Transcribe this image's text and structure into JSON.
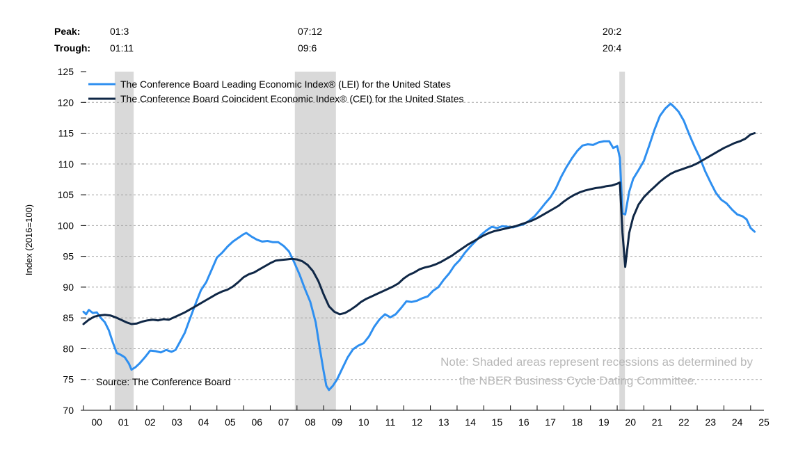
{
  "chart_data": {
    "type": "line",
    "ylabel": "Index (2016=100)",
    "ylim": [
      70,
      125
    ],
    "yticks": [
      "70",
      "75",
      "80",
      "85",
      "90",
      "95",
      "100",
      "105",
      "110",
      "115",
      "120",
      "125"
    ],
    "xlim": [
      2000,
      2025.5
    ],
    "xticks": [
      "00",
      "01",
      "02",
      "03",
      "04",
      "05",
      "06",
      "07",
      "08",
      "09",
      "10",
      "11",
      "12",
      "13",
      "14",
      "15",
      "16",
      "17",
      "18",
      "19",
      "20",
      "21",
      "22",
      "23",
      "24",
      "25"
    ],
    "grid": true,
    "legend": "top-left",
    "recessions": [
      {
        "peak": "01:3",
        "trough": "01:11",
        "start": 2001.17,
        "end": 2001.88
      },
      {
        "peak": "07:12",
        "trough": "09:6",
        "start": 2007.92,
        "end": 2009.46
      },
      {
        "peak": "20:2",
        "trough": "20:4",
        "start": 2020.08,
        "end": 2020.29
      }
    ],
    "peak_label": "Peak:",
    "trough_label": "Trough:",
    "source": "Source: The Conference Board",
    "note_line1": "Note: Shaded areas represent recessions as determined by",
    "note_line2": "the NBER Business Cycle Dating Committee.",
    "series": [
      {
        "name": "The Conference Board Leading Economic Index® (LEI) for the United States",
        "color": "#2e8ff0",
        "points": [
          [
            2000.0,
            86.0
          ],
          [
            2000.1,
            85.6
          ],
          [
            2000.2,
            86.3
          ],
          [
            2000.35,
            85.8
          ],
          [
            2000.5,
            85.9
          ],
          [
            2000.65,
            85.0
          ],
          [
            2000.8,
            84.3
          ],
          [
            2000.95,
            83.0
          ],
          [
            2001.1,
            81.0
          ],
          [
            2001.25,
            79.3
          ],
          [
            2001.4,
            79.0
          ],
          [
            2001.55,
            78.6
          ],
          [
            2001.7,
            77.6
          ],
          [
            2001.8,
            76.6
          ],
          [
            2001.95,
            77.0
          ],
          [
            2002.1,
            77.6
          ],
          [
            2002.3,
            78.6
          ],
          [
            2002.5,
            79.7
          ],
          [
            2002.7,
            79.6
          ],
          [
            2002.9,
            79.4
          ],
          [
            2003.1,
            79.8
          ],
          [
            2003.3,
            79.5
          ],
          [
            2003.45,
            79.8
          ],
          [
            2003.6,
            81.0
          ],
          [
            2003.8,
            82.6
          ],
          [
            2004.0,
            85.0
          ],
          [
            2004.2,
            87.3
          ],
          [
            2004.4,
            89.5
          ],
          [
            2004.6,
            90.8
          ],
          [
            2004.8,
            92.8
          ],
          [
            2005.0,
            94.8
          ],
          [
            2005.2,
            95.6
          ],
          [
            2005.4,
            96.6
          ],
          [
            2005.6,
            97.4
          ],
          [
            2005.8,
            98.0
          ],
          [
            2006.0,
            98.6
          ],
          [
            2006.1,
            98.8
          ],
          [
            2006.3,
            98.2
          ],
          [
            2006.5,
            97.7
          ],
          [
            2006.7,
            97.4
          ],
          [
            2006.9,
            97.5
          ],
          [
            2007.1,
            97.3
          ],
          [
            2007.3,
            97.3
          ],
          [
            2007.5,
            96.7
          ],
          [
            2007.7,
            95.8
          ],
          [
            2007.9,
            94.0
          ],
          [
            2008.1,
            92.0
          ],
          [
            2008.3,
            89.7
          ],
          [
            2008.5,
            87.6
          ],
          [
            2008.7,
            84.3
          ],
          [
            2008.85,
            80.2
          ],
          [
            2009.0,
            76.3
          ],
          [
            2009.1,
            74.0
          ],
          [
            2009.2,
            73.3
          ],
          [
            2009.35,
            74.0
          ],
          [
            2009.5,
            75.0
          ],
          [
            2009.7,
            76.8
          ],
          [
            2009.9,
            78.6
          ],
          [
            2010.1,
            79.9
          ],
          [
            2010.3,
            80.5
          ],
          [
            2010.5,
            80.9
          ],
          [
            2010.7,
            82.0
          ],
          [
            2010.9,
            83.6
          ],
          [
            2011.1,
            84.8
          ],
          [
            2011.3,
            85.6
          ],
          [
            2011.5,
            85.1
          ],
          [
            2011.7,
            85.6
          ],
          [
            2011.9,
            86.6
          ],
          [
            2012.1,
            87.7
          ],
          [
            2012.3,
            87.6
          ],
          [
            2012.5,
            87.8
          ],
          [
            2012.7,
            88.2
          ],
          [
            2012.9,
            88.5
          ],
          [
            2013.1,
            89.4
          ],
          [
            2013.3,
            90.0
          ],
          [
            2013.5,
            91.2
          ],
          [
            2013.7,
            92.2
          ],
          [
            2013.9,
            93.5
          ],
          [
            2014.1,
            94.4
          ],
          [
            2014.3,
            95.6
          ],
          [
            2014.5,
            96.6
          ],
          [
            2014.7,
            97.5
          ],
          [
            2014.9,
            98.5
          ],
          [
            2015.1,
            99.2
          ],
          [
            2015.3,
            99.8
          ],
          [
            2015.5,
            99.6
          ],
          [
            2015.7,
            99.9
          ],
          [
            2015.9,
            99.8
          ],
          [
            2016.1,
            99.7
          ],
          [
            2016.3,
            100.0
          ],
          [
            2016.5,
            100.2
          ],
          [
            2016.7,
            100.8
          ],
          [
            2016.9,
            101.5
          ],
          [
            2017.1,
            102.5
          ],
          [
            2017.3,
            103.6
          ],
          [
            2017.5,
            104.6
          ],
          [
            2017.7,
            106.0
          ],
          [
            2017.9,
            107.9
          ],
          [
            2018.1,
            109.5
          ],
          [
            2018.3,
            110.9
          ],
          [
            2018.5,
            112.1
          ],
          [
            2018.7,
            113.0
          ],
          [
            2018.9,
            113.2
          ],
          [
            2019.1,
            113.1
          ],
          [
            2019.3,
            113.5
          ],
          [
            2019.5,
            113.7
          ],
          [
            2019.7,
            113.7
          ],
          [
            2019.85,
            112.6
          ],
          [
            2020.0,
            112.9
          ],
          [
            2020.1,
            111.0
          ],
          [
            2020.2,
            102.0
          ],
          [
            2020.3,
            101.8
          ],
          [
            2020.45,
            105.5
          ],
          [
            2020.6,
            107.6
          ],
          [
            2020.8,
            109.0
          ],
          [
            2021.0,
            110.5
          ],
          [
            2021.2,
            113.0
          ],
          [
            2021.4,
            115.6
          ],
          [
            2021.6,
            117.8
          ],
          [
            2021.8,
            119.0
          ],
          [
            2022.0,
            119.8
          ],
          [
            2022.15,
            119.2
          ],
          [
            2022.3,
            118.5
          ],
          [
            2022.5,
            117.0
          ],
          [
            2022.7,
            114.8
          ],
          [
            2022.9,
            112.8
          ],
          [
            2023.1,
            111.0
          ],
          [
            2023.3,
            108.8
          ],
          [
            2023.5,
            107.0
          ],
          [
            2023.7,
            105.3
          ],
          [
            2023.9,
            104.2
          ],
          [
            2024.1,
            103.6
          ],
          [
            2024.3,
            102.6
          ],
          [
            2024.5,
            101.8
          ],
          [
            2024.7,
            101.5
          ],
          [
            2024.85,
            101.0
          ],
          [
            2025.0,
            99.6
          ],
          [
            2025.15,
            99.0
          ]
        ]
      },
      {
        "name": "The Conference Board Coincident Economic Index® (CEI) for the United States",
        "color": "#0f2746",
        "points": [
          [
            2000.0,
            84.0
          ],
          [
            2000.2,
            84.7
          ],
          [
            2000.4,
            85.2
          ],
          [
            2000.6,
            85.4
          ],
          [
            2000.8,
            85.5
          ],
          [
            2001.0,
            85.4
          ],
          [
            2001.2,
            85.1
          ],
          [
            2001.4,
            84.7
          ],
          [
            2001.6,
            84.3
          ],
          [
            2001.8,
            84.0
          ],
          [
            2002.0,
            84.1
          ],
          [
            2002.2,
            84.4
          ],
          [
            2002.4,
            84.6
          ],
          [
            2002.6,
            84.7
          ],
          [
            2002.8,
            84.6
          ],
          [
            2003.0,
            84.8
          ],
          [
            2003.2,
            84.7
          ],
          [
            2003.4,
            85.1
          ],
          [
            2003.6,
            85.5
          ],
          [
            2003.8,
            85.9
          ],
          [
            2004.0,
            86.4
          ],
          [
            2004.2,
            86.9
          ],
          [
            2004.4,
            87.4
          ],
          [
            2004.6,
            87.9
          ],
          [
            2004.8,
            88.4
          ],
          [
            2005.0,
            88.9
          ],
          [
            2005.2,
            89.3
          ],
          [
            2005.4,
            89.6
          ],
          [
            2005.6,
            90.1
          ],
          [
            2005.8,
            90.8
          ],
          [
            2006.0,
            91.6
          ],
          [
            2006.2,
            92.1
          ],
          [
            2006.4,
            92.4
          ],
          [
            2006.6,
            92.9
          ],
          [
            2006.8,
            93.4
          ],
          [
            2007.0,
            93.9
          ],
          [
            2007.2,
            94.3
          ],
          [
            2007.4,
            94.4
          ],
          [
            2007.6,
            94.5
          ],
          [
            2007.8,
            94.6
          ],
          [
            2008.0,
            94.5
          ],
          [
            2008.2,
            94.2
          ],
          [
            2008.4,
            93.6
          ],
          [
            2008.6,
            92.6
          ],
          [
            2008.8,
            91.0
          ],
          [
            2009.0,
            88.8
          ],
          [
            2009.2,
            86.9
          ],
          [
            2009.4,
            86.0
          ],
          [
            2009.6,
            85.6
          ],
          [
            2009.8,
            85.8
          ],
          [
            2010.0,
            86.3
          ],
          [
            2010.2,
            86.9
          ],
          [
            2010.4,
            87.6
          ],
          [
            2010.6,
            88.1
          ],
          [
            2010.8,
            88.5
          ],
          [
            2011.0,
            88.9
          ],
          [
            2011.2,
            89.3
          ],
          [
            2011.4,
            89.7
          ],
          [
            2011.6,
            90.1
          ],
          [
            2011.8,
            90.6
          ],
          [
            2012.0,
            91.4
          ],
          [
            2012.2,
            92.0
          ],
          [
            2012.4,
            92.4
          ],
          [
            2012.6,
            92.9
          ],
          [
            2012.8,
            93.2
          ],
          [
            2013.0,
            93.4
          ],
          [
            2013.2,
            93.7
          ],
          [
            2013.4,
            94.1
          ],
          [
            2013.6,
            94.6
          ],
          [
            2013.8,
            95.1
          ],
          [
            2014.0,
            95.7
          ],
          [
            2014.2,
            96.3
          ],
          [
            2014.4,
            96.9
          ],
          [
            2014.6,
            97.4
          ],
          [
            2014.8,
            97.9
          ],
          [
            2015.0,
            98.4
          ],
          [
            2015.2,
            98.8
          ],
          [
            2015.4,
            99.1
          ],
          [
            2015.6,
            99.3
          ],
          [
            2015.8,
            99.5
          ],
          [
            2016.0,
            99.7
          ],
          [
            2016.2,
            99.9
          ],
          [
            2016.4,
            100.2
          ],
          [
            2016.6,
            100.5
          ],
          [
            2016.8,
            100.8
          ],
          [
            2017.0,
            101.2
          ],
          [
            2017.2,
            101.7
          ],
          [
            2017.4,
            102.2
          ],
          [
            2017.6,
            102.7
          ],
          [
            2017.8,
            103.2
          ],
          [
            2018.0,
            103.9
          ],
          [
            2018.2,
            104.5
          ],
          [
            2018.4,
            105.0
          ],
          [
            2018.6,
            105.4
          ],
          [
            2018.8,
            105.7
          ],
          [
            2019.0,
            105.9
          ],
          [
            2019.2,
            106.1
          ],
          [
            2019.4,
            106.2
          ],
          [
            2019.6,
            106.4
          ],
          [
            2019.8,
            106.5
          ],
          [
            2020.0,
            106.8
          ],
          [
            2020.1,
            107.0
          ],
          [
            2020.2,
            98.8
          ],
          [
            2020.3,
            93.3
          ],
          [
            2020.45,
            98.8
          ],
          [
            2020.6,
            101.4
          ],
          [
            2020.8,
            103.4
          ],
          [
            2021.0,
            104.6
          ],
          [
            2021.2,
            105.5
          ],
          [
            2021.4,
            106.3
          ],
          [
            2021.6,
            107.1
          ],
          [
            2021.8,
            107.8
          ],
          [
            2022.0,
            108.4
          ],
          [
            2022.2,
            108.8
          ],
          [
            2022.4,
            109.1
          ],
          [
            2022.6,
            109.4
          ],
          [
            2022.8,
            109.7
          ],
          [
            2023.0,
            110.1
          ],
          [
            2023.2,
            110.6
          ],
          [
            2023.4,
            111.1
          ],
          [
            2023.6,
            111.6
          ],
          [
            2023.8,
            112.1
          ],
          [
            2024.0,
            112.6
          ],
          [
            2024.2,
            113.0
          ],
          [
            2024.4,
            113.4
          ],
          [
            2024.6,
            113.7
          ],
          [
            2024.8,
            114.1
          ],
          [
            2025.0,
            114.8
          ],
          [
            2025.15,
            115.0
          ]
        ]
      }
    ]
  }
}
